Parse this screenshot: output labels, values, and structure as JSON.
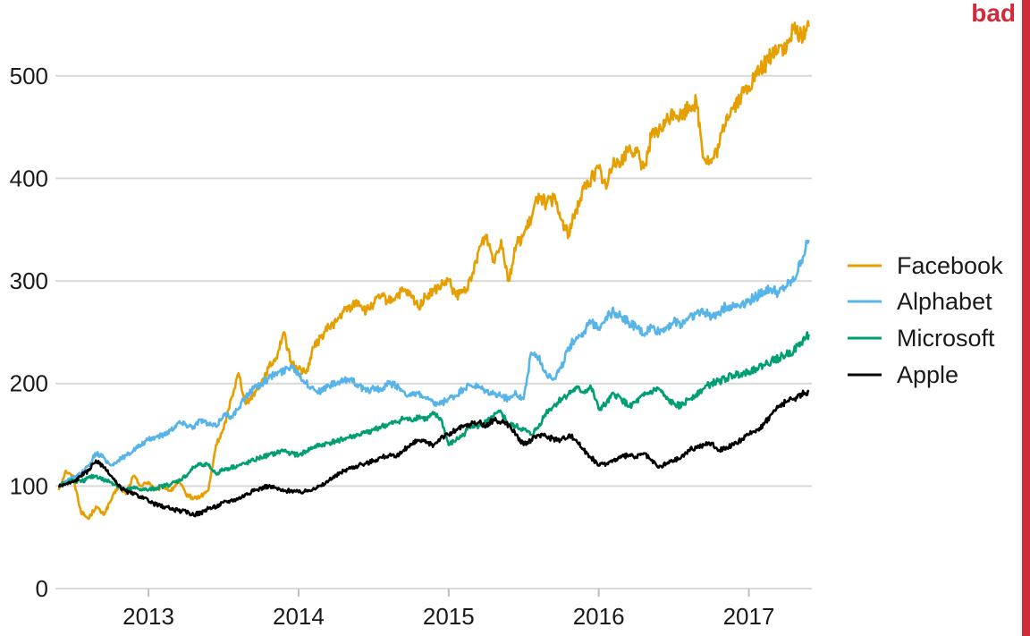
{
  "badge": {
    "label": "bad",
    "color": "#d02b3a"
  },
  "chart_data": {
    "type": "line",
    "title": "",
    "xlabel": "",
    "ylabel": "",
    "xlim": [
      2012.38,
      2017.42
    ],
    "ylim": [
      0,
      560
    ],
    "grid": "horizontal",
    "legend_position": "right",
    "x_ticks": [
      2013,
      2014,
      2015,
      2016,
      2017
    ],
    "x_tick_labels": [
      "2013",
      "2014",
      "2015",
      "2016",
      "2017"
    ],
    "y_ticks": [
      0,
      100,
      200,
      300,
      400,
      500
    ],
    "y_tick_labels": [
      "0",
      "100",
      "200",
      "300",
      "400",
      "500"
    ],
    "series": [
      {
        "name": "Facebook",
        "color": "#e69f00",
        "x": [
          2012.4,
          2012.45,
          2012.5,
          2012.55,
          2012.6,
          2012.65,
          2012.7,
          2012.75,
          2012.8,
          2012.85,
          2012.9,
          2012.95,
          2013.0,
          2013.05,
          2013.1,
          2013.15,
          2013.2,
          2013.25,
          2013.3,
          2013.35,
          2013.4,
          2013.45,
          2013.5,
          2013.55,
          2013.6,
          2013.65,
          2013.7,
          2013.75,
          2013.8,
          2013.85,
          2013.9,
          2013.95,
          2014.0,
          2014.05,
          2014.1,
          2014.15,
          2014.2,
          2014.25,
          2014.3,
          2014.35,
          2014.4,
          2014.45,
          2014.5,
          2014.55,
          2014.6,
          2014.65,
          2014.7,
          2014.75,
          2014.8,
          2014.85,
          2014.9,
          2014.95,
          2015.0,
          2015.05,
          2015.1,
          2015.15,
          2015.2,
          2015.25,
          2015.3,
          2015.35,
          2015.4,
          2015.45,
          2015.5,
          2015.55,
          2015.6,
          2015.65,
          2015.7,
          2015.75,
          2015.8,
          2015.85,
          2015.9,
          2015.95,
          2016.0,
          2016.05,
          2016.1,
          2016.15,
          2016.2,
          2016.25,
          2016.3,
          2016.35,
          2016.4,
          2016.45,
          2016.5,
          2016.55,
          2016.6,
          2016.65,
          2016.7,
          2016.75,
          2016.8,
          2016.85,
          2016.9,
          2016.95,
          2017.0,
          2017.05,
          2017.1,
          2017.15,
          2017.2,
          2017.25,
          2017.3,
          2017.35,
          2017.4
        ],
        "values": [
          96,
          115,
          108,
          75,
          68,
          80,
          72,
          86,
          100,
          92,
          110,
          100,
          104,
          96,
          100,
          95,
          105,
          92,
          88,
          90,
          96,
          140,
          155,
          185,
          210,
          180,
          190,
          200,
          215,
          225,
          250,
          220,
          215,
          210,
          235,
          245,
          255,
          260,
          270,
          275,
          280,
          270,
          278,
          285,
          280,
          285,
          290,
          285,
          275,
          285,
          290,
          295,
          300,
          285,
          290,
          300,
          330,
          345,
          320,
          340,
          300,
          335,
          345,
          360,
          385,
          375,
          380,
          360,
          345,
          370,
          390,
          400,
          410,
          390,
          420,
          415,
          430,
          425,
          410,
          440,
          445,
          455,
          465,
          460,
          470,
          475,
          420,
          415,
          430,
          460,
          470,
          480,
          490,
          500,
          510,
          520,
          530,
          525,
          545,
          540,
          548
        ]
      },
      {
        "name": "Alphabet",
        "color": "#56b4e9",
        "x": [
          2012.4,
          2012.45,
          2012.5,
          2012.55,
          2012.6,
          2012.65,
          2012.7,
          2012.75,
          2012.8,
          2012.85,
          2012.9,
          2012.95,
          2013.0,
          2013.05,
          2013.1,
          2013.15,
          2013.2,
          2013.25,
          2013.3,
          2013.35,
          2013.4,
          2013.45,
          2013.5,
          2013.55,
          2013.6,
          2013.65,
          2013.7,
          2013.75,
          2013.8,
          2013.85,
          2013.9,
          2013.95,
          2014.0,
          2014.05,
          2014.1,
          2014.15,
          2014.2,
          2014.25,
          2014.3,
          2014.35,
          2014.4,
          2014.45,
          2014.5,
          2014.55,
          2014.6,
          2014.65,
          2014.7,
          2014.75,
          2014.8,
          2014.85,
          2014.9,
          2014.95,
          2015.0,
          2015.05,
          2015.1,
          2015.15,
          2015.2,
          2015.25,
          2015.3,
          2015.35,
          2015.4,
          2015.45,
          2015.5,
          2015.55,
          2015.6,
          2015.65,
          2015.7,
          2015.75,
          2015.8,
          2015.85,
          2015.9,
          2015.95,
          2016.0,
          2016.05,
          2016.1,
          2016.15,
          2016.2,
          2016.25,
          2016.3,
          2016.35,
          2016.4,
          2016.45,
          2016.5,
          2016.55,
          2016.6,
          2016.65,
          2016.7,
          2016.75,
          2016.8,
          2016.85,
          2016.9,
          2016.95,
          2017.0,
          2017.05,
          2017.1,
          2017.15,
          2017.2,
          2017.25,
          2017.3,
          2017.35,
          2017.4
        ],
        "values": [
          100,
          105,
          108,
          112,
          120,
          132,
          128,
          120,
          125,
          130,
          135,
          140,
          145,
          148,
          150,
          155,
          162,
          160,
          158,
          165,
          160,
          158,
          170,
          168,
          175,
          188,
          195,
          200,
          205,
          210,
          212,
          218,
          210,
          200,
          195,
          192,
          198,
          200,
          202,
          205,
          198,
          192,
          196,
          193,
          200,
          198,
          192,
          188,
          190,
          185,
          180,
          180,
          185,
          188,
          195,
          198,
          196,
          192,
          190,
          188,
          185,
          190,
          185,
          230,
          225,
          210,
          205,
          215,
          235,
          245,
          250,
          260,
          255,
          265,
          270,
          265,
          260,
          255,
          248,
          255,
          250,
          255,
          260,
          258,
          265,
          268,
          270,
          265,
          270,
          275,
          275,
          278,
          280,
          285,
          290,
          292,
          288,
          295,
          300,
          320,
          340
        ]
      },
      {
        "name": "Microsoft",
        "color": "#009e73",
        "x": [
          2012.4,
          2012.45,
          2012.5,
          2012.55,
          2012.6,
          2012.65,
          2012.7,
          2012.75,
          2012.8,
          2012.85,
          2012.9,
          2012.95,
          2013.0,
          2013.05,
          2013.1,
          2013.15,
          2013.2,
          2013.25,
          2013.3,
          2013.35,
          2013.4,
          2013.45,
          2013.5,
          2013.55,
          2013.6,
          2013.65,
          2013.7,
          2013.75,
          2013.8,
          2013.85,
          2013.9,
          2013.95,
          2014.0,
          2014.05,
          2014.1,
          2014.15,
          2014.2,
          2014.25,
          2014.3,
          2014.35,
          2014.4,
          2014.45,
          2014.5,
          2014.55,
          2014.6,
          2014.65,
          2014.7,
          2014.75,
          2014.8,
          2014.85,
          2014.9,
          2014.95,
          2015.0,
          2015.05,
          2015.1,
          2015.15,
          2015.2,
          2015.25,
          2015.3,
          2015.35,
          2015.4,
          2015.45,
          2015.5,
          2015.55,
          2015.6,
          2015.65,
          2015.7,
          2015.75,
          2015.8,
          2015.85,
          2015.9,
          2015.95,
          2016.0,
          2016.05,
          2016.1,
          2016.15,
          2016.2,
          2016.25,
          2016.3,
          2016.35,
          2016.4,
          2016.45,
          2016.5,
          2016.55,
          2016.6,
          2016.65,
          2016.7,
          2016.75,
          2016.8,
          2016.85,
          2016.9,
          2016.95,
          2017.0,
          2017.05,
          2017.1,
          2017.15,
          2017.2,
          2017.25,
          2017.3,
          2017.35,
          2017.4
        ],
        "values": [
          100,
          103,
          106,
          104,
          108,
          110,
          106,
          104,
          100,
          96,
          98,
          97,
          96,
          98,
          100,
          102,
          105,
          110,
          118,
          122,
          120,
          112,
          116,
          118,
          120,
          122,
          125,
          128,
          130,
          132,
          135,
          132,
          130,
          134,
          138,
          140,
          142,
          144,
          146,
          148,
          150,
          152,
          155,
          158,
          160,
          162,
          166,
          164,
          168,
          165,
          170,
          165,
          140,
          145,
          150,
          160,
          158,
          162,
          168,
          172,
          160,
          158,
          155,
          150,
          158,
          172,
          178,
          185,
          190,
          195,
          192,
          196,
          175,
          180,
          190,
          185,
          178,
          182,
          188,
          192,
          195,
          185,
          180,
          178,
          185,
          190,
          195,
          200,
          202,
          205,
          208,
          210,
          212,
          215,
          218,
          222,
          225,
          228,
          232,
          240,
          248
        ]
      },
      {
        "name": "Apple",
        "color": "#000000",
        "x": [
          2012.4,
          2012.45,
          2012.5,
          2012.55,
          2012.6,
          2012.65,
          2012.7,
          2012.75,
          2012.8,
          2012.85,
          2012.9,
          2012.95,
          2013.0,
          2013.05,
          2013.1,
          2013.15,
          2013.2,
          2013.25,
          2013.3,
          2013.35,
          2013.4,
          2013.45,
          2013.5,
          2013.55,
          2013.6,
          2013.65,
          2013.7,
          2013.75,
          2013.8,
          2013.85,
          2013.9,
          2013.95,
          2014.0,
          2014.05,
          2014.1,
          2014.15,
          2014.2,
          2014.25,
          2014.3,
          2014.35,
          2014.4,
          2014.45,
          2014.5,
          2014.55,
          2014.6,
          2014.65,
          2014.7,
          2014.75,
          2014.8,
          2014.85,
          2014.9,
          2014.95,
          2015.0,
          2015.05,
          2015.1,
          2015.15,
          2015.2,
          2015.25,
          2015.3,
          2015.35,
          2015.4,
          2015.45,
          2015.5,
          2015.55,
          2015.6,
          2015.65,
          2015.7,
          2015.75,
          2015.8,
          2015.85,
          2015.9,
          2015.95,
          2016.0,
          2016.05,
          2016.1,
          2016.15,
          2016.2,
          2016.25,
          2016.3,
          2016.35,
          2016.4,
          2016.45,
          2016.5,
          2016.55,
          2016.6,
          2016.65,
          2016.7,
          2016.75,
          2016.8,
          2016.85,
          2016.9,
          2016.95,
          2017.0,
          2017.05,
          2017.1,
          2017.15,
          2017.2,
          2017.25,
          2017.3,
          2017.35,
          2017.4
        ],
        "values": [
          100,
          102,
          104,
          110,
          115,
          125,
          118,
          110,
          100,
          95,
          92,
          90,
          85,
          82,
          80,
          78,
          76,
          75,
          72,
          74,
          78,
          80,
          84,
          86,
          88,
          92,
          95,
          98,
          100,
          98,
          95,
          96,
          94,
          95,
          98,
          100,
          105,
          110,
          115,
          118,
          120,
          122,
          125,
          128,
          130,
          128,
          135,
          140,
          145,
          142,
          140,
          148,
          150,
          155,
          158,
          160,
          162,
          158,
          165,
          162,
          160,
          150,
          140,
          145,
          150,
          148,
          146,
          145,
          150,
          145,
          135,
          128,
          120,
          122,
          125,
          128,
          130,
          128,
          132,
          125,
          118,
          122,
          125,
          128,
          135,
          138,
          140,
          142,
          135,
          138,
          140,
          145,
          150,
          155,
          160,
          170,
          178,
          182,
          185,
          190,
          192
        ]
      }
    ]
  }
}
